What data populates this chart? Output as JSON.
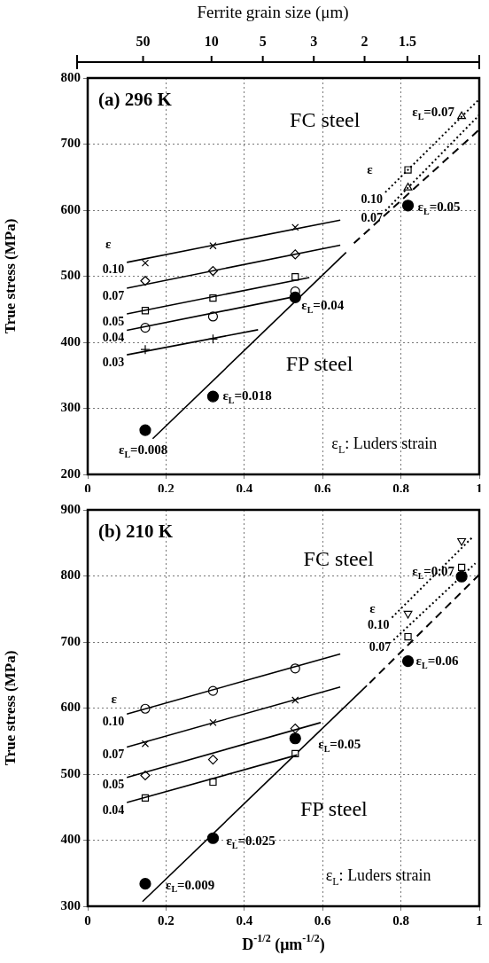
{
  "chart_data": [
    {
      "type": "scatter",
      "title": "(a) 296 K",
      "ylabel": "True stress (MPa)",
      "x2label": "Ferrite grain size (μm)",
      "xlim": [
        0,
        1
      ],
      "xticks": [
        0,
        0.2,
        0.4,
        0.6,
        0.8,
        1
      ],
      "ylim": [
        200,
        800
      ],
      "yticks": [
        200,
        300,
        400,
        500,
        600,
        700,
        800
      ],
      "grid": true,
      "series": [
        {
          "type": "line",
          "name": "0.10",
          "color": "#000000",
          "x": [
            0.1,
            0.645
          ],
          "values": [
            521,
            585
          ],
          "marker": "none",
          "line_style": "solid"
        },
        {
          "color": "#000000",
          "x": [
            0.147,
            0.32,
            0.53
          ],
          "values": [
            520,
            546,
            574
          ],
          "marker": "cross"
        },
        {
          "type": "line",
          "name": "0.07",
          "color": "#000000",
          "x": [
            0.1,
            0.645
          ],
          "values": [
            482,
            547
          ],
          "marker": "none",
          "line_style": "solid"
        },
        {
          "color": "#000000",
          "x": [
            0.147,
            0.32,
            0.53
          ],
          "values": [
            493,
            508,
            533
          ],
          "marker": "diamond"
        },
        {
          "type": "line",
          "name": "0.05",
          "color": "#000000",
          "x": [
            0.1,
            0.566
          ],
          "values": [
            443,
            498
          ],
          "marker": "none",
          "line_style": "solid"
        },
        {
          "color": "#000000",
          "x": [
            0.147,
            0.32,
            0.53
          ],
          "values": [
            448,
            467,
            499
          ],
          "marker": "square"
        },
        {
          "type": "line",
          "name": "0.04",
          "color": "#000000",
          "x": [
            0.1,
            0.536
          ],
          "values": [
            418,
            470
          ],
          "marker": "none",
          "line_style": "solid"
        },
        {
          "color": "#000000",
          "x": [
            0.147,
            0.32,
            0.53
          ],
          "values": [
            422,
            439,
            477
          ],
          "marker": "circle"
        },
        {
          "type": "line",
          "name": "0.03",
          "color": "#000000",
          "x": [
            0.1,
            0.435
          ],
          "values": [
            381,
            419
          ],
          "marker": "none",
          "line_style": "solid"
        },
        {
          "color": "#000000",
          "x": [
            0.147,
            0.32
          ],
          "values": [
            389,
            405
          ],
          "marker": "plus"
        },
        {
          "type": "line",
          "color": "#000000",
          "x": [
            0.166,
            0.66
          ],
          "values": [
            254,
            536
          ],
          "marker": "none",
          "line_style": "solid"
        },
        {
          "type": "line",
          "color": "#000000",
          "x": [
            0.68,
            1.0
          ],
          "values": [
            550,
            722
          ],
          "marker": "none",
          "line_style": "dashed"
        },
        {
          "color": "#000000",
          "x": [
            0.147,
            0.32,
            0.53,
            0.818
          ],
          "values": [
            267,
            318,
            468,
            607
          ],
          "marker": "filled_circle"
        },
        {
          "type": "line",
          "name": "0.10",
          "color": "#000000",
          "x": [
            0.76,
            1.0
          ],
          "values": [
            627,
            768
          ],
          "marker": "none",
          "line_style": "dotted"
        },
        {
          "type": "line",
          "name": "0.07",
          "color": "#000000",
          "x": [
            0.76,
            1.0
          ],
          "values": [
            599,
            744
          ],
          "marker": "none",
          "line_style": "dotted"
        },
        {
          "color": "#000000",
          "x": [
            0.818
          ],
          "values": [
            661
          ],
          "marker": "square"
        },
        {
          "color": "#000000",
          "x": [
            0.818,
            0.955
          ],
          "values": [
            634,
            742
          ],
          "marker": "triangle"
        }
      ],
      "annotations": [
        "FC steel",
        "FP steel",
        "ε$_{L}$: Luders strain",
        "ε",
        "ε",
        "50",
        "10",
        "5",
        "3",
        "2",
        "1.5",
        {
          "text": "ε$_{L}$=0.008",
          "x": 0.147,
          "y": 267
        },
        {
          "text": "ε$_{L}$=0.018",
          "x": 0.32,
          "y": 318
        },
        {
          "text": "ε$_{L}$=0.04",
          "x": 0.53,
          "y": 468
        },
        {
          "text": "ε$_{L}$=0.05",
          "x": 0.818,
          "y": 607
        },
        {
          "text": "ε$_{L}$=0.07",
          "x": 0.955,
          "y": 742
        }
      ]
    },
    {
      "type": "scatter",
      "title": "(b) 210 K",
      "ylabel": "True stress (MPa)",
      "xlabel": "D$^{-1/2}$ (μm$^{-1/2}$)",
      "xlim": [
        0,
        1
      ],
      "xticks": [
        0,
        0.2,
        0.4,
        0.6,
        0.8,
        1
      ],
      "ylim": [
        300,
        900
      ],
      "yticks": [
        300,
        400,
        500,
        600,
        700,
        800,
        900
      ],
      "grid": true,
      "series": [
        {
          "type": "line",
          "name": "0.10",
          "color": "#000000",
          "x": [
            0.1,
            0.645
          ],
          "values": [
            591,
            682
          ],
          "marker": "none",
          "line_style": "solid"
        },
        {
          "color": "#000000",
          "x": [
            0.147,
            0.32,
            0.53
          ],
          "values": [
            599,
            626,
            660
          ],
          "marker": "circle"
        },
        {
          "type": "line",
          "name": "0.07",
          "color": "#000000",
          "x": [
            0.1,
            0.645
          ],
          "values": [
            541,
            632
          ],
          "marker": "none",
          "line_style": "solid"
        },
        {
          "color": "#000000",
          "x": [
            0.147,
            0.32,
            0.53
          ],
          "values": [
            546,
            578,
            612
          ],
          "marker": "cross"
        },
        {
          "type": "line",
          "name": "0.05",
          "color": "#000000",
          "x": [
            0.1,
            0.595
          ],
          "values": [
            495,
            578
          ],
          "marker": "none",
          "line_style": "solid"
        },
        {
          "color": "#000000",
          "x": [
            0.147,
            0.32,
            0.53
          ],
          "values": [
            498,
            522,
            569
          ],
          "marker": "diamond"
        },
        {
          "type": "line",
          "name": "0.04",
          "color": "#000000",
          "x": [
            0.1,
            0.535
          ],
          "values": [
            457,
            529
          ],
          "marker": "none",
          "line_style": "solid"
        },
        {
          "color": "#000000",
          "x": [
            0.147,
            0.32,
            0.53
          ],
          "values": [
            464,
            488,
            531
          ],
          "marker": "square"
        },
        {
          "type": "line",
          "color": "#000000",
          "x": [
            0.14,
            0.713
          ],
          "values": [
            307,
            634
          ],
          "marker": "none",
          "line_style": "solid"
        },
        {
          "type": "line",
          "color": "#000000",
          "x": [
            0.72,
            1.0
          ],
          "values": [
            638,
            802
          ],
          "marker": "none",
          "line_style": "dashed"
        },
        {
          "color": "#000000",
          "x": [
            0.147,
            0.32,
            0.53,
            0.818,
            0.955
          ],
          "values": [
            334,
            403,
            554,
            671,
            799
          ],
          "marker": "filled_circle"
        },
        {
          "type": "line",
          "name": "0.10",
          "color": "#000000",
          "x": [
            0.777,
            0.985
          ],
          "values": [
            737,
            860
          ],
          "marker": "none",
          "line_style": "dotted"
        },
        {
          "type": "line",
          "name": "0.07",
          "color": "#000000",
          "x": [
            0.781,
            0.99
          ],
          "values": [
            703,
            819
          ],
          "marker": "none",
          "line_style": "dotted"
        },
        {
          "color": "#000000",
          "x": [
            0.818,
            0.955
          ],
          "values": [
            743,
            853
          ],
          "marker": "triangle_down"
        },
        {
          "color": "#000000",
          "x": [
            0.818,
            0.955
          ],
          "values": [
            708,
            813
          ],
          "marker": "square"
        }
      ],
      "annotations": [
        "FC steel",
        "FP steel",
        "ε$_{L}$: Luders strain",
        "ε",
        "ε",
        {
          "text": "ε$_{L}$=0.009",
          "x": 0.147,
          "y": 334
        },
        {
          "text": "ε$_{L}$=0.025",
          "x": 0.32,
          "y": 403
        },
        {
          "text": "ε$_{L}$=0.05",
          "x": 0.53,
          "y": 554
        },
        {
          "text": "ε$_{L}$=0.06",
          "x": 0.818,
          "y": 671
        },
        {
          "text": "ε$_{L}$=0.07",
          "x": 0.955,
          "y": 799
        }
      ]
    }
  ]
}
